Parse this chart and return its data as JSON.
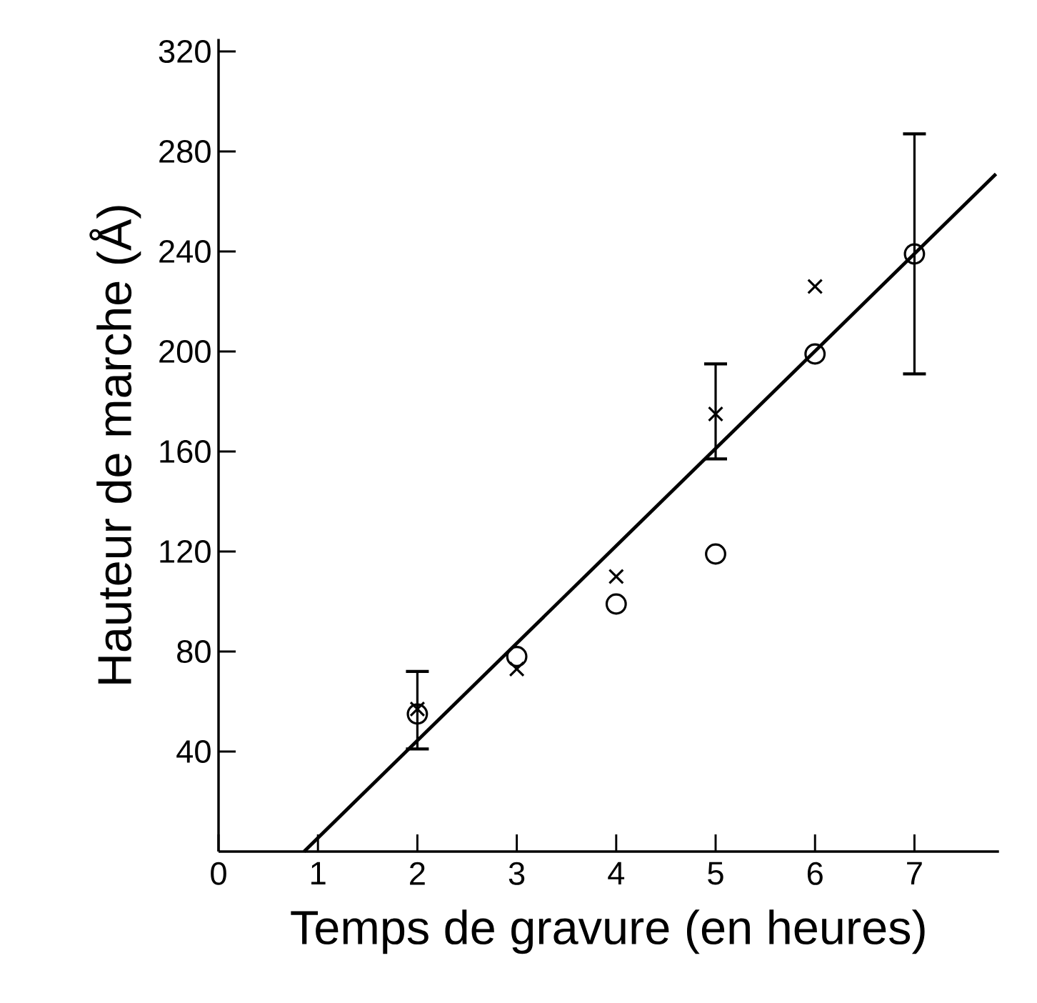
{
  "chart_data": {
    "type": "scatter",
    "xlabel": "Temps de gravure (en heures)",
    "ylabel": "Hauteur de marche (Å)",
    "xlim": [
      0,
      7.85
    ],
    "ylim": [
      0,
      325
    ],
    "xticks": [
      0,
      1,
      2,
      3,
      4,
      5,
      6,
      7
    ],
    "yticks": [
      40,
      80,
      120,
      160,
      200,
      240,
      280,
      320
    ],
    "grid": false,
    "series": [
      {
        "marker": "circle",
        "color": "#000000",
        "x": [
          2,
          3,
          4,
          5,
          6,
          7
        ],
        "values": [
          55,
          78,
          99,
          119,
          199,
          239
        ],
        "errors": [
          null,
          null,
          null,
          null,
          null,
          [
            191,
            287
          ]
        ]
      },
      {
        "marker": "cross",
        "color": "#000000",
        "x": [
          2,
          3,
          4,
          5,
          6
        ],
        "values": [
          57,
          73,
          110,
          175,
          226
        ],
        "errors": [
          [
            41,
            72
          ],
          null,
          null,
          [
            157,
            195
          ],
          null
        ]
      },
      {
        "type": "line",
        "marker": "none",
        "line_style": "solid",
        "color": "#000000",
        "x": [
          0.86,
          7.82
        ],
        "values": [
          0,
          271
        ]
      }
    ]
  }
}
